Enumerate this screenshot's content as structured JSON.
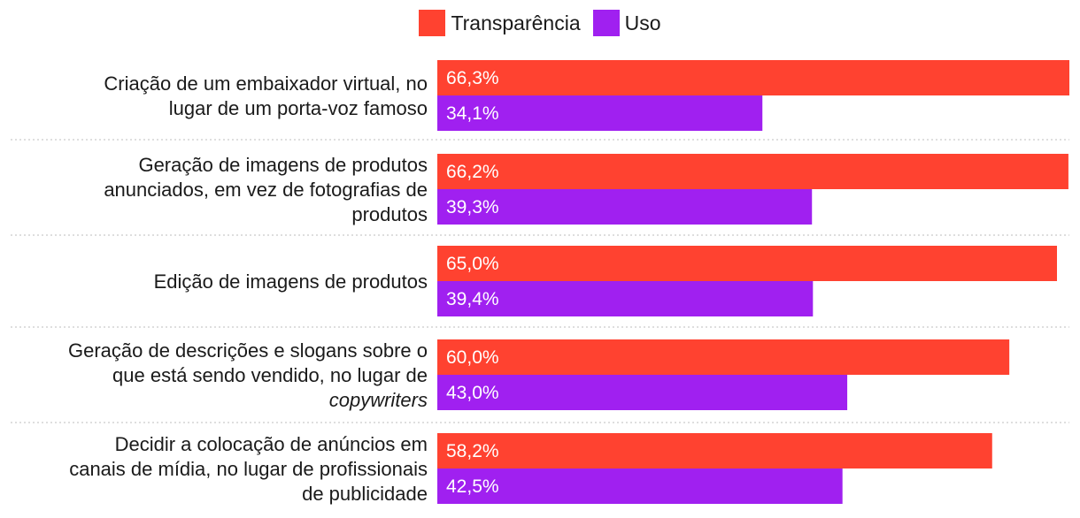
{
  "chart_data": {
    "type": "bar",
    "orientation": "horizontal",
    "title": "",
    "xlabel": "",
    "ylabel": "",
    "xlim": [
      0,
      66.3
    ],
    "grid": false,
    "legend_position": "top-center",
    "colors": {
      "Transparência": "#ff4230",
      "Uso": "#a020f0"
    },
    "categories": [
      {
        "lines": [
          "Criação de um embaixador virtual, no",
          "lugar de um porta-voz famoso"
        ]
      },
      {
        "lines": [
          "Geração de imagens de produtos",
          "anunciados, em vez de fotografias de",
          "produtos"
        ]
      },
      {
        "lines": [
          "Edição de imagens de produtos"
        ]
      },
      {
        "lines": [
          "Geração de descrições e slogans sobre o",
          "que está sendo vendido, no lugar de",
          "copywriters"
        ],
        "italic_last_line": true
      },
      {
        "lines": [
          "Decidir a colocação de anúncios em",
          "canais de mídia, no lugar de profissionais",
          "de publicidade"
        ]
      }
    ],
    "series": [
      {
        "name": "Transparência",
        "values": [
          66.3,
          66.2,
          65.0,
          60.0,
          58.2
        ],
        "labels": [
          "66,3%",
          "66,2%",
          "65,0%",
          "60,0%",
          "58,2%"
        ]
      },
      {
        "name": "Uso",
        "values": [
          34.1,
          39.3,
          39.4,
          43.0,
          42.5
        ],
        "labels": [
          "34,1%",
          "39,3%",
          "39,4%",
          "43,0%",
          "42,5%"
        ]
      }
    ]
  }
}
